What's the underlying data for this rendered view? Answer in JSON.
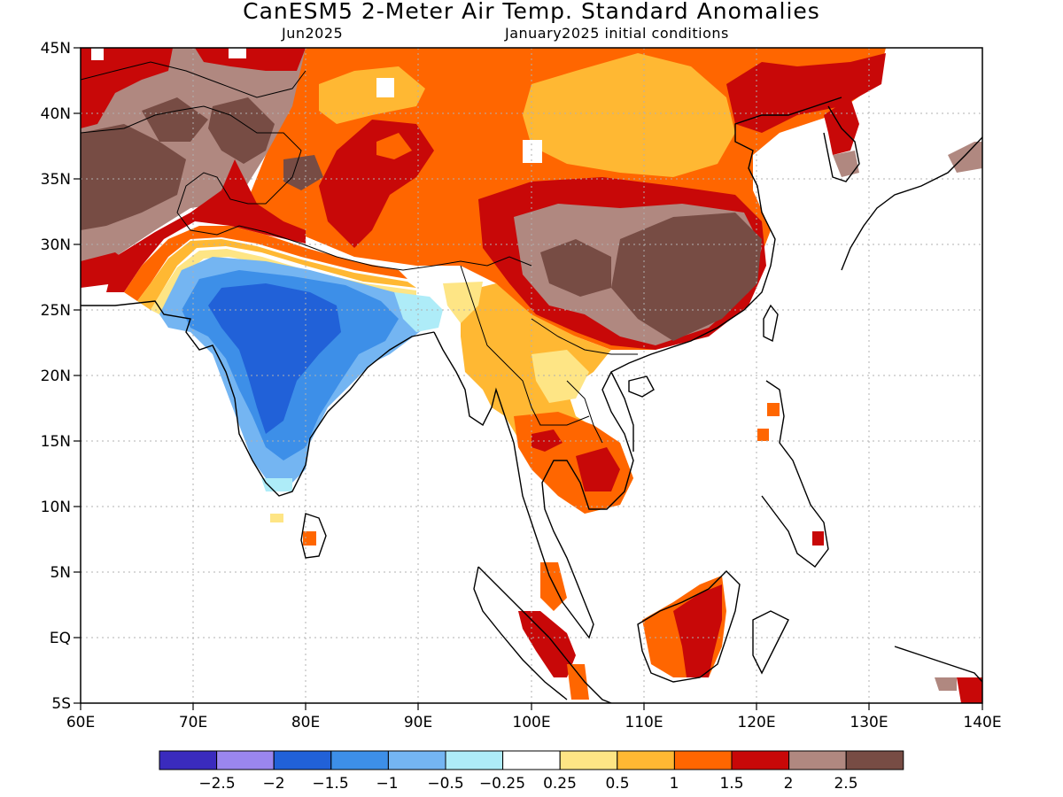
{
  "header": {
    "title": "CanESM5 2-Meter Air Temp. Standard Anomalies",
    "valid_month": "Jun2025",
    "initial_conditions": "January2025 initial conditions"
  },
  "map": {
    "lon_range": [
      60,
      140
    ],
    "lat_range": [
      -5,
      45
    ],
    "lon_labels": [
      "60E",
      "70E",
      "80E",
      "90E",
      "100E",
      "110E",
      "120E",
      "130E",
      "140E"
    ],
    "lat_labels": [
      "45N",
      "40N",
      "35N",
      "30N",
      "25N",
      "20N",
      "15N",
      "10N",
      "5N",
      "EQ",
      "5S"
    ],
    "grid": "dotted",
    "regions": [
      {
        "name": "india-negative-anomaly",
        "value": -1.5,
        "color": "#3d8fe8"
      },
      {
        "name": "china-warm-anomaly",
        "value": 1.5,
        "color": "#ff6600"
      },
      {
        "name": "southeast-asia-warm-anomaly",
        "value": 0.5,
        "color": "#ffb833"
      },
      {
        "name": "pakistan-afghanistan-high-anomaly",
        "value": 2.5,
        "color": "#774c44"
      },
      {
        "name": "south-china-high-anomaly",
        "value": 2.5,
        "color": "#774c44"
      }
    ]
  },
  "colorbar": {
    "bins": [
      {
        "color": "#3a2bbd"
      },
      {
        "color": "#9a86ee"
      },
      {
        "color": "#2161d8"
      },
      {
        "color": "#3d8fe8"
      },
      {
        "color": "#74b5f2"
      },
      {
        "color": "#aeecf8"
      },
      {
        "color": "#ffffff"
      },
      {
        "color": "#fee585"
      },
      {
        "color": "#ffb833"
      },
      {
        "color": "#ff6600"
      },
      {
        "color": "#c80808"
      },
      {
        "color": "#b08880"
      },
      {
        "color": "#774c44"
      }
    ],
    "tick_labels": [
      "−2.5",
      "−2",
      "−1.5",
      "−1",
      "−0.5",
      "−0.25",
      "0.25",
      "0.5",
      "1",
      "1.5",
      "2",
      "2.5"
    ]
  }
}
